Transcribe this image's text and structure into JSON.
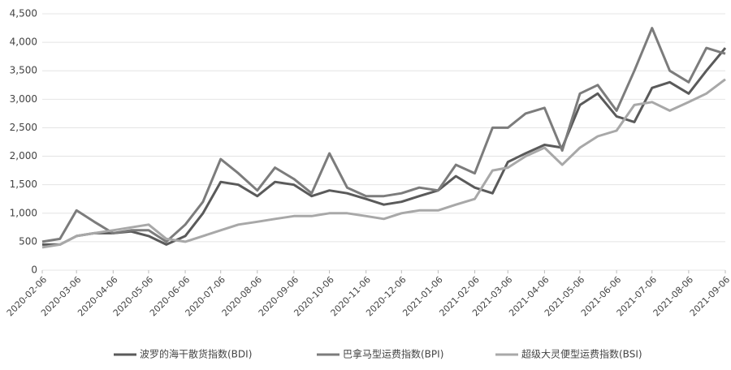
{
  "chart_data": {
    "type": "line",
    "x": [
      "2020-02-06",
      "2020-02-21",
      "2020-03-06",
      "2020-03-21",
      "2020-04-06",
      "2020-04-21",
      "2020-05-06",
      "2020-05-21",
      "2020-06-06",
      "2020-06-21",
      "2020-07-06",
      "2020-07-21",
      "2020-08-06",
      "2020-08-21",
      "2020-09-06",
      "2020-09-21",
      "2020-10-06",
      "2020-10-21",
      "2020-11-06",
      "2020-11-21",
      "2020-12-06",
      "2020-12-21",
      "2021-01-06",
      "2021-01-21",
      "2021-02-06",
      "2021-02-21",
      "2021-03-06",
      "2021-03-21",
      "2021-04-06",
      "2021-04-21",
      "2021-05-06",
      "2021-05-21",
      "2021-06-06",
      "2021-06-21",
      "2021-07-06",
      "2021-07-21",
      "2021-08-06",
      "2021-08-21",
      "2021-09-06"
    ],
    "xlim": [
      "2020-02-06",
      "2021-09-06"
    ],
    "xticks": [
      "2020-02-06",
      "2020-03-06",
      "2020-04-06",
      "2020-05-06",
      "2020-06-06",
      "2020-07-06",
      "2020-08-06",
      "2020-09-06",
      "2020-10-06",
      "2020-11-06",
      "2020-12-06",
      "2021-01-06",
      "2021-02-06",
      "2021-03-06",
      "2021-04-06",
      "2021-05-06",
      "2021-06-06",
      "2021-07-06",
      "2021-08-06",
      "2021-09-06"
    ],
    "ylim": [
      0,
      4500
    ],
    "yticks": [
      0,
      500,
      {
        "value": 1000,
        "label": "1,000"
      },
      {
        "value": 1500,
        "label": "1,500"
      },
      {
        "value": 2000,
        "label": "2,000"
      },
      {
        "value": 2500,
        "label": "2,500"
      },
      {
        "value": 3000,
        "label": "3,000"
      },
      {
        "value": 3500,
        "label": "3,500"
      },
      {
        "value": 4000,
        "label": "4,000"
      },
      {
        "value": 4500,
        "label": "4,500"
      }
    ],
    "grid": true,
    "legend": "bottom",
    "series": [
      {
        "name": "波罗的海干散货指数(BDI)",
        "color": "#5a5a5a",
        "values": [
          450,
          450,
          600,
          650,
          650,
          680,
          600,
          450,
          600,
          1000,
          1550,
          1500,
          1300,
          1550,
          1500,
          1300,
          1400,
          1350,
          1250,
          1150,
          1200,
          1300,
          1400,
          1650,
          1450,
          1350,
          1900,
          2050,
          2200,
          2150,
          2900,
          3100,
          2700,
          2600,
          3200,
          3300,
          3100,
          3500,
          3900
        ]
      },
      {
        "name": "巴拿马型运费指数(BPI)",
        "color": "#7c7c7c",
        "values": [
          500,
          550,
          1050,
          850,
          650,
          700,
          700,
          500,
          800,
          1200,
          1950,
          1700,
          1400,
          1800,
          1600,
          1350,
          2050,
          1450,
          1300,
          1300,
          1350,
          1450,
          1400,
          1850,
          1700,
          2500,
          2500,
          2750,
          2850,
          2100,
          3100,
          3250,
          2800,
          3500,
          4250,
          3500,
          3300,
          3900,
          3800
        ]
      },
      {
        "name": "超级大灵便型运费指数(BSI)",
        "color": "#a8a8a8",
        "values": [
          400,
          450,
          600,
          650,
          700,
          750,
          800,
          550,
          500,
          600,
          700,
          800,
          850,
          900,
          950,
          950,
          1000,
          1000,
          950,
          900,
          1000,
          1050,
          1050,
          1150,
          1250,
          1750,
          1800,
          2000,
          2150,
          1850,
          2150,
          2350,
          2450,
          2900,
          2950,
          2800,
          2950,
          3100,
          3350
        ]
      }
    ]
  }
}
